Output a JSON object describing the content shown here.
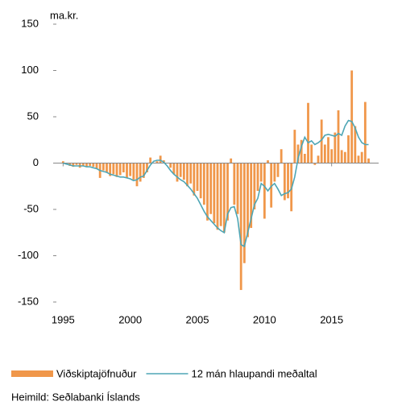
{
  "chart_data": {
    "type": "bar-line",
    "y_label": "ma.kr.",
    "source": "Heimild: Seðlabanki Íslands",
    "x": [
      1995,
      1995.25,
      1995.5,
      1995.75,
      1996,
      1996.25,
      1996.5,
      1996.75,
      1997,
      1997.25,
      1997.5,
      1997.75,
      1998,
      1998.25,
      1998.5,
      1998.75,
      1999,
      1999.25,
      1999.5,
      1999.75,
      2000,
      2000.25,
      2000.5,
      2000.75,
      2001,
      2001.25,
      2001.5,
      2001.75,
      2002,
      2002.25,
      2002.5,
      2002.75,
      2003,
      2003.25,
      2003.5,
      2003.75,
      2004,
      2004.25,
      2004.5,
      2004.75,
      2005,
      2005.25,
      2005.5,
      2005.75,
      2006,
      2006.25,
      2006.5,
      2006.75,
      2007,
      2007.25,
      2007.5,
      2007.75,
      2008,
      2008.25,
      2008.5,
      2008.75,
      2009,
      2009.25,
      2009.5,
      2009.75,
      2010,
      2010.25,
      2010.5,
      2010.75,
      2011,
      2011.25,
      2011.5,
      2011.75,
      2012,
      2012.25,
      2012.5,
      2012.75,
      2013,
      2013.25,
      2013.5,
      2013.75,
      2014,
      2014.25,
      2014.5,
      2014.75,
      2015,
      2015.25,
      2015.5,
      2015.75,
      2016,
      2016.25,
      2016.5,
      2016.75,
      2017,
      2017.25,
      2017.5,
      2017.75
    ],
    "series": [
      {
        "name": "Viðskiptajöfnuður",
        "kind": "bar",
        "color": "#f0974a",
        "values": [
          2,
          -1,
          -3,
          -4,
          -2,
          -5,
          -3,
          -4,
          -3,
          -4,
          -6,
          -16,
          -8,
          -10,
          -14,
          -12,
          -15,
          -13,
          -10,
          -16,
          -14,
          -18,
          -25,
          -20,
          -16,
          -10,
          6,
          0,
          2,
          8,
          3,
          0,
          -5,
          -12,
          -20,
          -15,
          -18,
          -25,
          -22,
          -35,
          -30,
          -38,
          -45,
          -62,
          -55,
          -65,
          -72,
          -68,
          -75,
          -62,
          5,
          -45,
          -55,
          -137,
          -108,
          -80,
          -70,
          -50,
          -30,
          -20,
          -60,
          3,
          -48,
          -20,
          -15,
          15,
          -40,
          -38,
          -52,
          36,
          20,
          25,
          10,
          65,
          20,
          -2,
          8,
          47,
          20,
          28,
          15,
          33,
          57,
          14,
          12,
          30,
          100,
          40,
          8,
          12,
          66,
          5
        ]
      },
      {
        "name": "12 mán hlaupandi meðaltal",
        "kind": "line",
        "color": "#4ea6b5",
        "values": [
          0,
          -1,
          -2,
          -3,
          -3,
          -3,
          -3,
          -4,
          -4,
          -5,
          -6,
          -8,
          -9,
          -10,
          -12,
          -13,
          -14,
          -15,
          -15,
          -16,
          -17,
          -19,
          -18,
          -15,
          -14,
          -8,
          -2,
          2,
          3,
          3,
          1,
          -3,
          -8,
          -12,
          -15,
          -18,
          -20,
          -24,
          -28,
          -33,
          -38,
          -45,
          -52,
          -58,
          -62,
          -66,
          -70,
          -73,
          -75,
          -55,
          -48,
          -47,
          -60,
          -88,
          -90,
          -75,
          -60,
          -45,
          -38,
          -22,
          -25,
          -30,
          -25,
          -22,
          -28,
          -35,
          -33,
          -32,
          -28,
          -15,
          5,
          18,
          28,
          22,
          24,
          20,
          22,
          25,
          30,
          31,
          30,
          29,
          32,
          30,
          40,
          46,
          45,
          38,
          28,
          22,
          20,
          20
        ]
      }
    ],
    "xlim": [
      1994.5,
      2018.5
    ],
    "xticks": [
      1995,
      2000,
      2005,
      2010,
      2015
    ],
    "ylim": [
      -150,
      150
    ],
    "yticks": [
      150,
      100,
      50,
      0,
      -50,
      -100,
      -150
    ]
  }
}
